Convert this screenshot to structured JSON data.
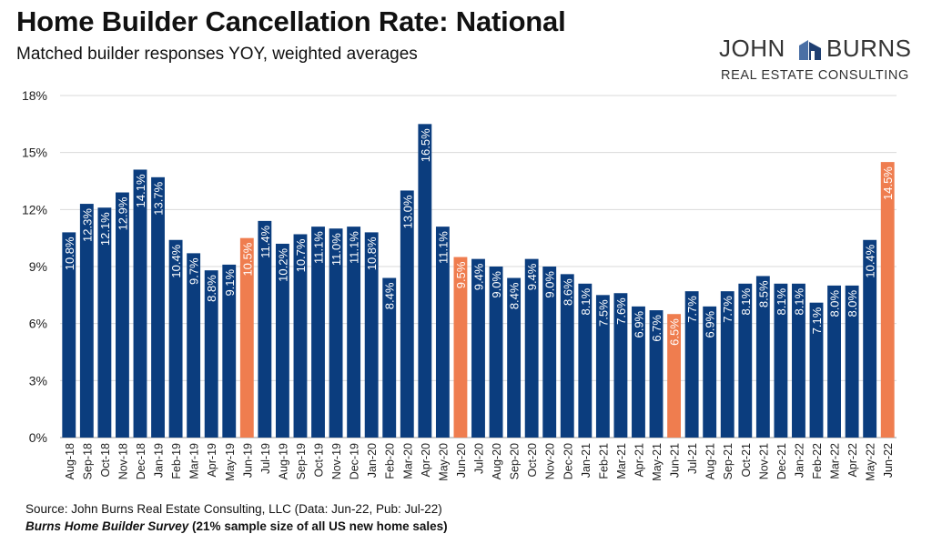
{
  "header": {
    "title": "Home Builder Cancellation Rate: National",
    "subtitle": "Matched builder responses YOY, weighted averages"
  },
  "logo": {
    "word1": "JOHN",
    "word2": "BURNS",
    "tagline": "REAL ESTATE CONSULTING"
  },
  "footer": {
    "source": "Source: John Burns Real Estate Consulting, LLC (Data: Jun-22, Pub: Jul-22)",
    "survey_name": "Burns Home Builder Survey",
    "survey_note": " (21% sample size of all US new home sales)"
  },
  "colors": {
    "bar": "#0b3d7e",
    "highlight": "#ef7d4f",
    "grid": "#d9d9d9"
  },
  "chart_data": {
    "type": "bar",
    "title": "Home Builder Cancellation Rate: National",
    "ylim": [
      0,
      18
    ],
    "yticks": [
      0,
      3,
      6,
      9,
      12,
      15,
      18
    ],
    "ytick_labels": [
      "0%",
      "3%",
      "6%",
      "9%",
      "12%",
      "15%",
      "18%"
    ],
    "grid": true,
    "categories": [
      "Aug-18",
      "Sep-18",
      "Oct-18",
      "Nov-18",
      "Dec-18",
      "Jan-19",
      "Feb-19",
      "Mar-19",
      "Apr-19",
      "May-19",
      "Jun-19",
      "Jul-19",
      "Aug-19",
      "Sep-19",
      "Oct-19",
      "Nov-19",
      "Dec-19",
      "Jan-20",
      "Feb-20",
      "Mar-20",
      "Apr-20",
      "May-20",
      "Jun-20",
      "Jul-20",
      "Aug-20",
      "Sep-20",
      "Oct-20",
      "Nov-20",
      "Dec-20",
      "Jan-21",
      "Feb-21",
      "Mar-21",
      "Apr-21",
      "May-21",
      "Jun-21",
      "Jul-21",
      "Aug-21",
      "Sep-21",
      "Oct-21",
      "Nov-21",
      "Dec-21",
      "Jan-22",
      "Feb-22",
      "Mar-22",
      "Apr-22",
      "May-22",
      "Jun-22"
    ],
    "values": [
      10.8,
      12.3,
      12.1,
      12.9,
      14.1,
      13.7,
      10.4,
      9.7,
      8.8,
      9.1,
      10.5,
      11.4,
      10.2,
      10.7,
      11.1,
      11.0,
      11.1,
      10.8,
      8.4,
      13.0,
      16.5,
      11.1,
      9.5,
      9.4,
      9.0,
      8.4,
      9.4,
      9.0,
      8.6,
      8.1,
      7.5,
      7.6,
      6.9,
      6.7,
      6.5,
      7.7,
      6.9,
      7.7,
      8.1,
      8.5,
      8.1,
      8.1,
      7.1,
      8.0,
      8.0,
      10.4,
      14.5
    ],
    "labels": [
      "10.8%",
      "12.3%",
      "12.1%",
      "12.9%",
      "14.1%",
      "13.7%",
      "10.4%",
      "9.7%",
      "8.8%",
      "9.1%",
      "10.5%",
      "11.4%",
      "10.2%",
      "10.7%",
      "11.1%",
      "11.0%",
      "11.1%",
      "10.8%",
      "8.4%",
      "13.0%",
      "16.5%",
      "11.1%",
      "9.5%",
      "9.4%",
      "9.0%",
      "8.4%",
      "9.4%",
      "9.0%",
      "8.6%",
      "8.1%",
      "7.5%",
      "7.6%",
      "6.9%",
      "6.7%",
      "6.5%",
      "7.7%",
      "6.9%",
      "7.7%",
      "8.1%",
      "8.5%",
      "8.1%",
      "8.1%",
      "7.1%",
      "8.0%",
      "8.0%",
      "10.4%",
      "14.5%"
    ],
    "highlighted": [
      "Jun-19",
      "Jun-20",
      "Jun-21",
      "Jun-22"
    ]
  }
}
